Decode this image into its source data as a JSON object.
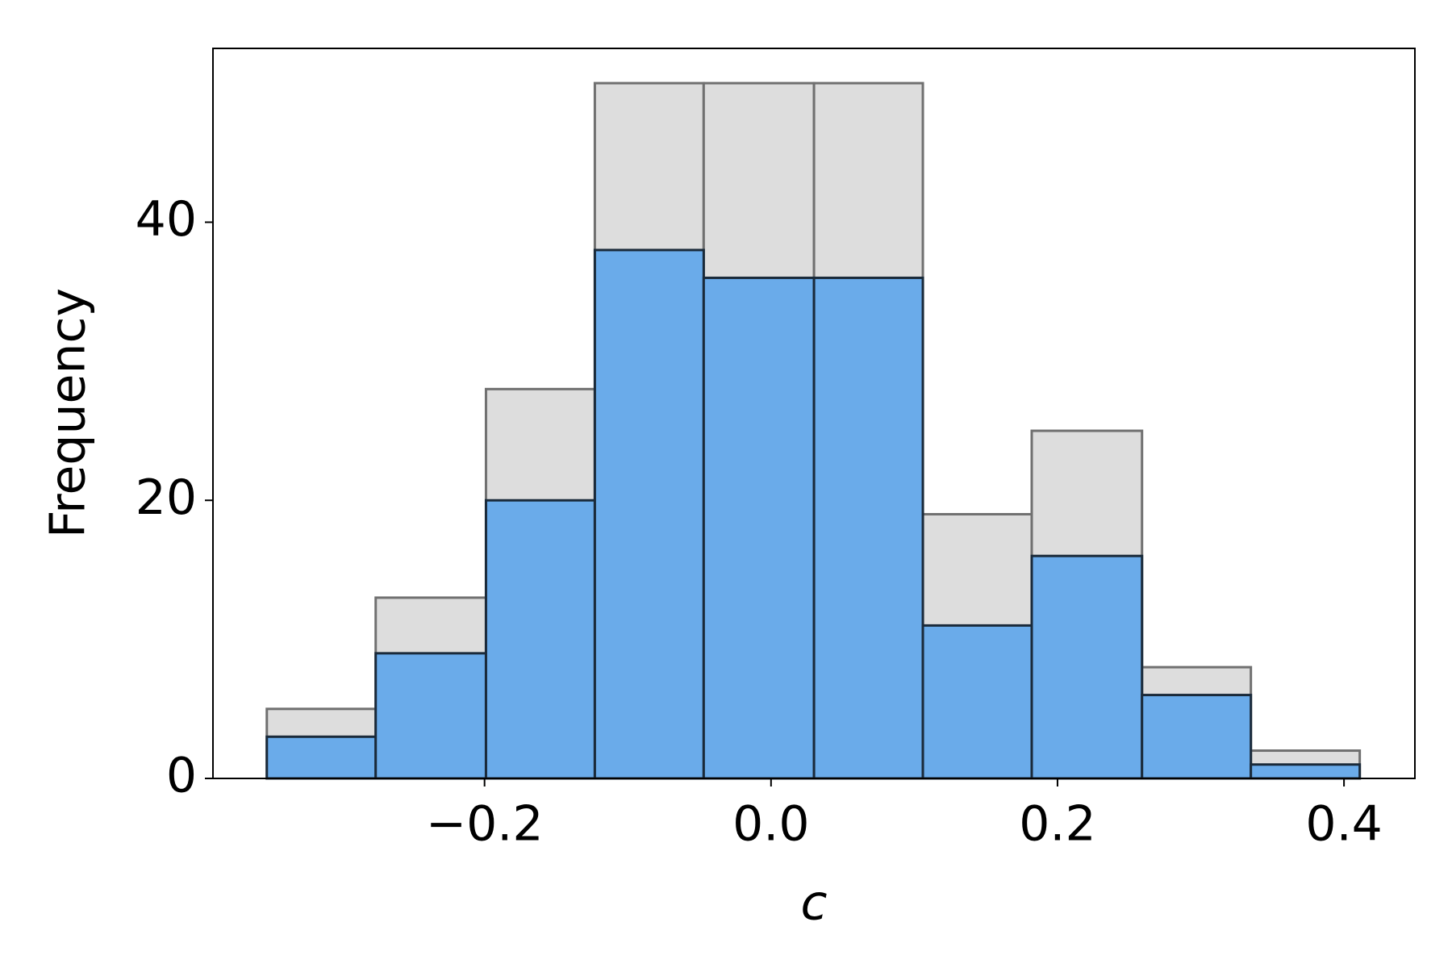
{
  "chart_data": {
    "type": "histogram",
    "xlabel": "c",
    "ylabel": "Frequency",
    "bins": [
      -0.352,
      -0.276,
      -0.199,
      -0.123,
      -0.047,
      0.03,
      0.106,
      0.182,
      0.259,
      0.335,
      0.411
    ],
    "series": [
      {
        "color": "#dddddd",
        "edgecolor": "#707070",
        "values": [
          5,
          13,
          28,
          50,
          50,
          50,
          19,
          25,
          8,
          2
        ]
      },
      {
        "color": "#6aabea",
        "edgecolor": "#1a2a3a",
        "values": [
          3,
          9,
          20,
          38,
          36,
          36,
          11,
          16,
          6,
          1
        ]
      }
    ],
    "xlim": [
      -0.3896,
      0.4495
    ],
    "ylim": [
      0,
      52.5
    ],
    "xticks": [
      {
        "value": -0.2,
        "label": "−0.2"
      },
      {
        "value": 0,
        "label": "0.0"
      },
      0.2,
      0.4
    ],
    "yticks": [
      0,
      20,
      40
    ]
  }
}
